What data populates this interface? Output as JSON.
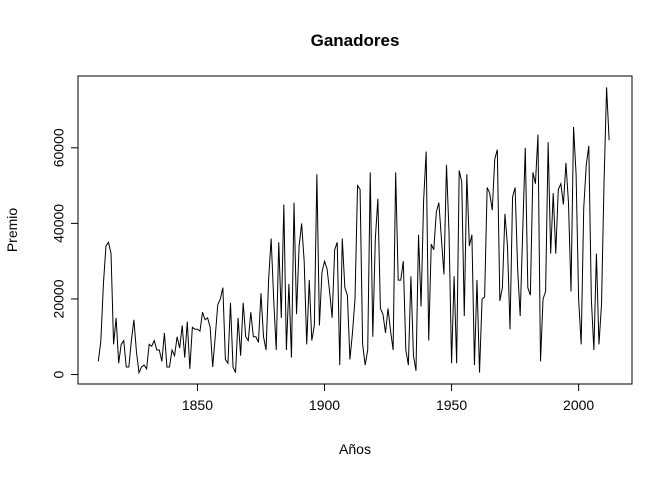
{
  "chart_data": {
    "type": "line",
    "title": "Ganadores",
    "x_label": "Años",
    "y_label": "Premio",
    "color": "#000000",
    "x": [
      1811,
      1812,
      1813,
      1814,
      1815,
      1816,
      1817,
      1818,
      1819,
      1820,
      1821,
      1822,
      1823,
      1824,
      1825,
      1826,
      1827,
      1828,
      1829,
      1830,
      1831,
      1832,
      1833,
      1834,
      1835,
      1836,
      1837,
      1838,
      1839,
      1840,
      1841,
      1842,
      1843,
      1844,
      1845,
      1846,
      1847,
      1848,
      1849,
      1850,
      1851,
      1852,
      1853,
      1854,
      1855,
      1856,
      1857,
      1858,
      1859,
      1860,
      1861,
      1862,
      1863,
      1864,
      1865,
      1866,
      1867,
      1868,
      1869,
      1870,
      1871,
      1872,
      1873,
      1874,
      1875,
      1876,
      1877,
      1878,
      1879,
      1880,
      1881,
      1882,
      1883,
      1884,
      1885,
      1886,
      1887,
      1888,
      1889,
      1890,
      1891,
      1892,
      1893,
      1894,
      1895,
      1896,
      1897,
      1898,
      1899,
      1900,
      1901,
      1902,
      1903,
      1904,
      1905,
      1906,
      1907,
      1908,
      1909,
      1910,
      1911,
      1912,
      1913,
      1914,
      1915,
      1916,
      1917,
      1918,
      1919,
      1920,
      1921,
      1922,
      1923,
      1924,
      1925,
      1926,
      1927,
      1928,
      1929,
      1930,
      1931,
      1932,
      1933,
      1934,
      1935,
      1936,
      1937,
      1938,
      1939,
      1940,
      1941,
      1942,
      1943,
      1944,
      1945,
      1946,
      1947,
      1948,
      1949,
      1950,
      1951,
      1952,
      1953,
      1954,
      1955,
      1956,
      1957,
      1958,
      1959,
      1960,
      1961,
      1962,
      1963,
      1964,
      1965,
      1966,
      1967,
      1968,
      1969,
      1970,
      1971,
      1972,
      1973,
      1974,
      1975,
      1976,
      1977,
      1978,
      1979,
      1980,
      1981,
      1982,
      1983,
      1984,
      1985,
      1986,
      1987,
      1988,
      1989,
      1990,
      1991,
      1992,
      1993,
      1994,
      1995,
      1996,
      1997,
      1998,
      1999,
      2000,
      2001,
      2002,
      2003,
      2004,
      2005,
      2006,
      2007,
      2008,
      2009,
      2010,
      2011,
      2012
    ],
    "values": [
      3500,
      9000,
      24000,
      34000,
      35000,
      32000,
      8000,
      15000,
      3000,
      8000,
      9000,
      2000,
      2000,
      9000,
      14500,
      6000,
      500,
      2000,
      2500,
      1500,
      8000,
      7500,
      9000,
      6500,
      6500,
      3500,
      11000,
      2000,
      2000,
      6500,
      5000,
      10000,
      7000,
      13000,
      4500,
      14000,
      1500,
      12500,
      12000,
      12000,
      11500,
      16500,
      14500,
      15000,
      12500,
      2000,
      10000,
      18500,
      20000,
      23000,
      4000,
      3000,
      19000,
      2000,
      500,
      15000,
      5000,
      19000,
      10000,
      9000,
      16500,
      10000,
      10000,
      8500,
      21500,
      10000,
      6500,
      25000,
      36000,
      20000,
      6500,
      35000,
      15000,
      45000,
      6500,
      24000,
      4500,
      45500,
      16000,
      34000,
      40000,
      30000,
      8000,
      25000,
      9000,
      13000,
      53000,
      13000,
      27000,
      30000,
      28000,
      22000,
      15000,
      33000,
      35000,
      2500,
      36000,
      23000,
      21000,
      4000,
      11000,
      20000,
      50000,
      49000,
      8000,
      2500,
      6500,
      53500,
      10000,
      36000,
      46500,
      17500,
      16000,
      11000,
      17500,
      11500,
      6500,
      53500,
      25000,
      25000,
      30000,
      6500,
      2500,
      26000,
      5000,
      1000,
      37000,
      18000,
      46000,
      59000,
      9000,
      34500,
      33000,
      43000,
      45500,
      36000,
      26500,
      55500,
      37500,
      3000,
      26000,
      3000,
      54000,
      51000,
      15500,
      53000,
      34000,
      37000,
      2500,
      25000,
      500,
      20000,
      20500,
      49500,
      48000,
      43500,
      57000,
      59500,
      19500,
      23000,
      42500,
      34000,
      12000,
      47000,
      49500,
      28000,
      15500,
      38000,
      60000,
      23000,
      21000,
      53500,
      50500,
      63500,
      3500,
      20000,
      22000,
      61500,
      32000,
      48000,
      32000,
      49000,
      50500,
      45000,
      56000,
      45500,
      22000,
      65500,
      53000,
      20000,
      8000,
      44000,
      55500,
      60500,
      20000,
      6500,
      32000,
      8000,
      18500,
      51000,
      76000,
      62000
    ],
    "xlim": [
      1803,
      2021
    ],
    "ylim": [
      -2500,
      79000
    ],
    "xticks": [
      1850,
      1900,
      1950,
      2000
    ],
    "yticks": [
      0,
      20000,
      40000,
      60000
    ]
  }
}
